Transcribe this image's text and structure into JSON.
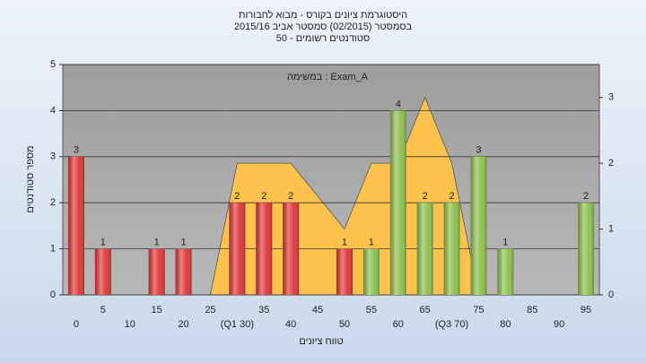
{
  "chart_data": {
    "type": "bar",
    "title": "היסטוגרמת ציונים בקורס - מבוא לחבורות",
    "subtitle": "בסמסטר  (02/2015)  סמסטר אביב 2015/16",
    "subtitle2": "סטודנטים רשומים - 50",
    "annotation": "במשימה : Exam_A",
    "ylabel": "מספר סטודנטים",
    "xlabel": "טווח ציונים",
    "categories": [
      "0",
      "5",
      "10",
      "15",
      "20",
      "25",
      "(Q1 30)",
      "35",
      "40",
      "45",
      "50",
      "55",
      "60",
      "65",
      "(Q3 70)",
      "75",
      "80",
      "85",
      "90",
      "95"
    ],
    "values": [
      3,
      1,
      0,
      1,
      1,
      0,
      2,
      2,
      2,
      0,
      1,
      1,
      4,
      2,
      2,
      3,
      1,
      0,
      0,
      2
    ],
    "colors": [
      "#e03a3a",
      "#e03a3a",
      "#e03a3a",
      "#e03a3a",
      "#e03a3a",
      "#e03a3a",
      "#e03a3a",
      "#e03a3a",
      "#e03a3a",
      "#e03a3a",
      "#e03a3a",
      "#8fc04f",
      "#8fc04f",
      "#8fc04f",
      "#8fc04f",
      "#8fc04f",
      "#8fc04f",
      "#8fc04f",
      "#8fc04f",
      "#8fc04f"
    ],
    "area": {
      "axis": "y2",
      "color": "#ffc34d",
      "values": [
        null,
        null,
        null,
        null,
        null,
        0,
        2,
        2,
        2,
        1.5,
        1,
        2,
        2,
        3,
        2,
        0,
        null,
        null,
        null,
        null
      ]
    },
    "ylim": [
      0,
      5
    ],
    "yticks": [
      0,
      1,
      2,
      3,
      4,
      5
    ],
    "y2lim": [
      0,
      3.5
    ],
    "y2ticks": [
      0,
      1,
      2,
      3
    ],
    "grid": true
  }
}
